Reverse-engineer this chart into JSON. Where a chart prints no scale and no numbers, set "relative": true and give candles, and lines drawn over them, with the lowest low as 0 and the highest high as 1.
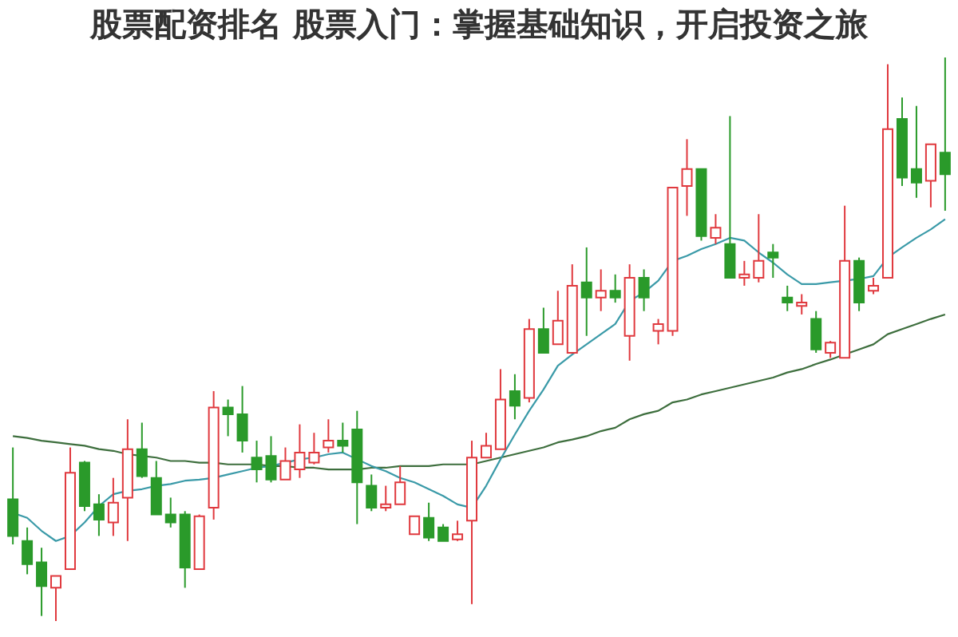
{
  "chart_data": {
    "type": "candlestick",
    "title": "股票配资排名  股票入门：掌握基础知识，开启投资之旅",
    "relative": true,
    "tick_labels": false,
    "categories": [
      null,
      null,
      null,
      null,
      null,
      null,
      null,
      null,
      null,
      null,
      null,
      null,
      null,
      null,
      null,
      null,
      null,
      null,
      null,
      null,
      null,
      null,
      null,
      null,
      null,
      null,
      null,
      null,
      null,
      null,
      null,
      null,
      null,
      null,
      null,
      null,
      null,
      null,
      null,
      null,
      null,
      null,
      null,
      null,
      null,
      null,
      null,
      null,
      null,
      null,
      null,
      null,
      null,
      null,
      null,
      null,
      null,
      null,
      null,
      null,
      null,
      null,
      null,
      null,
      null,
      null
    ],
    "ohlc": [
      [
        0.216,
        0.308,
        0.136,
        0.151
      ],
      [
        0.142,
        0.166,
        0.083,
        0.101
      ],
      [
        0.104,
        0.13,
        0.009,
        0.062
      ],
      [
        0.059,
        0.08,
        0.0,
        0.08
      ],
      [
        0.092,
        0.308,
        0.092,
        0.263
      ],
      [
        0.281,
        0.284,
        0.195,
        0.204
      ],
      [
        0.207,
        0.225,
        0.151,
        0.18
      ],
      [
        0.175,
        0.254,
        0.151,
        0.21
      ],
      [
        0.219,
        0.358,
        0.142,
        0.305
      ],
      [
        0.305,
        0.352,
        0.254,
        0.257
      ],
      [
        0.254,
        0.284,
        0.189,
        0.189
      ],
      [
        0.189,
        0.219,
        0.166,
        0.175
      ],
      [
        0.189,
        0.195,
        0.059,
        0.095
      ],
      [
        0.092,
        0.189,
        0.092,
        0.186
      ],
      [
        0.201,
        0.408,
        0.18,
        0.379
      ],
      [
        0.379,
        0.393,
        0.328,
        0.367
      ],
      [
        0.367,
        0.417,
        0.299,
        0.32
      ],
      [
        0.29,
        0.32,
        0.246,
        0.269
      ],
      [
        0.293,
        0.328,
        0.246,
        0.251
      ],
      [
        0.251,
        0.308,
        0.251,
        0.284
      ],
      [
        0.269,
        0.349,
        0.254,
        0.299
      ],
      [
        0.281,
        0.334,
        0.278,
        0.299
      ],
      [
        0.308,
        0.358,
        0.299,
        0.32
      ],
      [
        0.32,
        0.352,
        0.299,
        0.311
      ],
      [
        0.34,
        0.373,
        0.172,
        0.246
      ],
      [
        0.24,
        0.26,
        0.195,
        0.201
      ],
      [
        0.201,
        0.24,
        0.195,
        0.207
      ],
      [
        0.207,
        0.275,
        0.207,
        0.246
      ],
      [
        0.154,
        0.186,
        0.154,
        0.186
      ],
      [
        0.183,
        0.21,
        0.142,
        0.148
      ],
      [
        0.166,
        0.172,
        0.142,
        0.142
      ],
      [
        0.145,
        0.178,
        0.142,
        0.154
      ],
      [
        0.178,
        0.32,
        0.03,
        0.29
      ],
      [
        0.29,
        0.334,
        0.29,
        0.311
      ],
      [
        0.305,
        0.447,
        0.305,
        0.393
      ],
      [
        0.408,
        0.438,
        0.358,
        0.382
      ],
      [
        0.396,
        0.536,
        0.388,
        0.518
      ],
      [
        0.518,
        0.556,
        0.476,
        0.476
      ],
      [
        0.491,
        0.586,
        0.491,
        0.533
      ],
      [
        0.476,
        0.633,
        0.476,
        0.595
      ],
      [
        0.601,
        0.663,
        0.506,
        0.574
      ],
      [
        0.574,
        0.624,
        0.55,
        0.586
      ],
      [
        0.586,
        0.615,
        0.565,
        0.574
      ],
      [
        0.506,
        0.633,
        0.462,
        0.609
      ],
      [
        0.609,
        0.624,
        0.55,
        0.574
      ],
      [
        0.515,
        0.536,
        0.491,
        0.527
      ],
      [
        0.515,
        0.769,
        0.506,
        0.769
      ],
      [
        0.772,
        0.855,
        0.719,
        0.802
      ],
      [
        0.802,
        0.802,
        0.675,
        0.683
      ],
      [
        0.68,
        0.722,
        0.669,
        0.698
      ],
      [
        0.669,
        0.896,
        0.609,
        0.609
      ],
      [
        0.609,
        0.639,
        0.595,
        0.615
      ],
      [
        0.609,
        0.722,
        0.601,
        0.639
      ],
      [
        0.654,
        0.669,
        0.609,
        0.645
      ],
      [
        0.574,
        0.595,
        0.55,
        0.565
      ],
      [
        0.559,
        0.58,
        0.544,
        0.565
      ],
      [
        0.536,
        0.55,
        0.476,
        0.482
      ],
      [
        0.476,
        0.497,
        0.467,
        0.494
      ],
      [
        0.467,
        0.737,
        0.467,
        0.639
      ],
      [
        0.639,
        0.645,
        0.55,
        0.565
      ],
      [
        0.586,
        0.609,
        0.58,
        0.595
      ],
      [
        0.609,
        0.988,
        0.609,
        0.873
      ],
      [
        0.891,
        0.929,
        0.772,
        0.787
      ],
      [
        0.802,
        0.914,
        0.751,
        0.778
      ],
      [
        0.781,
        0.846,
        0.734,
        0.846
      ],
      [
        0.831,
        1.0,
        0.728,
        0.793
      ]
    ],
    "colors": [
      "#2a9a2a",
      "#2a9a2a",
      "#2a9a2a",
      "#e0393e",
      "#e0393e",
      "#2a9a2a",
      "#2a9a2a",
      "#e0393e",
      "#e0393e",
      "#2a9a2a",
      "#2a9a2a",
      "#2a9a2a",
      "#2a9a2a",
      "#e0393e",
      "#e0393e",
      "#2a9a2a",
      "#2a9a2a",
      "#2a9a2a",
      "#2a9a2a",
      "#e0393e",
      "#e0393e",
      "#e0393e",
      "#e0393e",
      "#2a9a2a",
      "#2a9a2a",
      "#2a9a2a",
      "#e0393e",
      "#e0393e",
      "#e0393e",
      "#2a9a2a",
      "#2a9a2a",
      "#e0393e",
      "#e0393e",
      "#e0393e",
      "#e0393e",
      "#2a9a2a",
      "#e0393e",
      "#2a9a2a",
      "#e0393e",
      "#e0393e",
      "#2a9a2a",
      "#e0393e",
      "#2a9a2a",
      "#e0393e",
      "#2a9a2a",
      "#e0393e",
      "#e0393e",
      "#e0393e",
      "#2a9a2a",
      "#e0393e",
      "#2a9a2a",
      "#e0393e",
      "#e0393e",
      "#2a9a2a",
      "#2a9a2a",
      "#e0393e",
      "#2a9a2a",
      "#e0393e",
      "#e0393e",
      "#2a9a2a",
      "#e0393e",
      "#e0393e",
      "#2a9a2a",
      "#2a9a2a",
      "#e0393e",
      "#2a9a2a"
    ],
    "series": [
      {
        "type": "line",
        "color": "#3d6e3d",
        "values": [
          0.328,
          0.325,
          0.32,
          0.317,
          0.314,
          0.311,
          0.305,
          0.302,
          0.296,
          0.293,
          0.29,
          0.284,
          0.284,
          0.281,
          0.281,
          0.278,
          0.278,
          0.278,
          0.275,
          0.275,
          0.272,
          0.272,
          0.269,
          0.269,
          0.269,
          0.272,
          0.272,
          0.275,
          0.275,
          0.275,
          0.278,
          0.278,
          0.278,
          0.284,
          0.29,
          0.296,
          0.302,
          0.308,
          0.317,
          0.322,
          0.328,
          0.337,
          0.343,
          0.358,
          0.367,
          0.373,
          0.388,
          0.393,
          0.402,
          0.408,
          0.414,
          0.42,
          0.426,
          0.432,
          0.441,
          0.447,
          0.456,
          0.464,
          0.473,
          0.482,
          0.491,
          0.509,
          0.518,
          0.527,
          0.536,
          0.544
        ]
      },
      {
        "type": "line",
        "color": "#3a9aa8",
        "values": [
          0.192,
          0.183,
          0.16,
          0.142,
          0.151,
          0.175,
          0.204,
          0.225,
          0.231,
          0.234,
          0.24,
          0.243,
          0.249,
          0.251,
          0.254,
          0.26,
          0.266,
          0.272,
          0.275,
          0.281,
          0.287,
          0.29,
          0.296,
          0.299,
          0.287,
          0.275,
          0.266,
          0.254,
          0.246,
          0.234,
          0.222,
          0.207,
          0.201,
          0.24,
          0.287,
          0.331,
          0.373,
          0.411,
          0.453,
          0.473,
          0.491,
          0.509,
          0.527,
          0.568,
          0.583,
          0.604,
          0.639,
          0.648,
          0.66,
          0.669,
          0.68,
          0.675,
          0.654,
          0.636,
          0.615,
          0.598,
          0.598,
          0.601,
          0.604,
          0.607,
          0.612,
          0.645,
          0.663,
          0.68,
          0.695,
          0.713
        ]
      }
    ]
  }
}
